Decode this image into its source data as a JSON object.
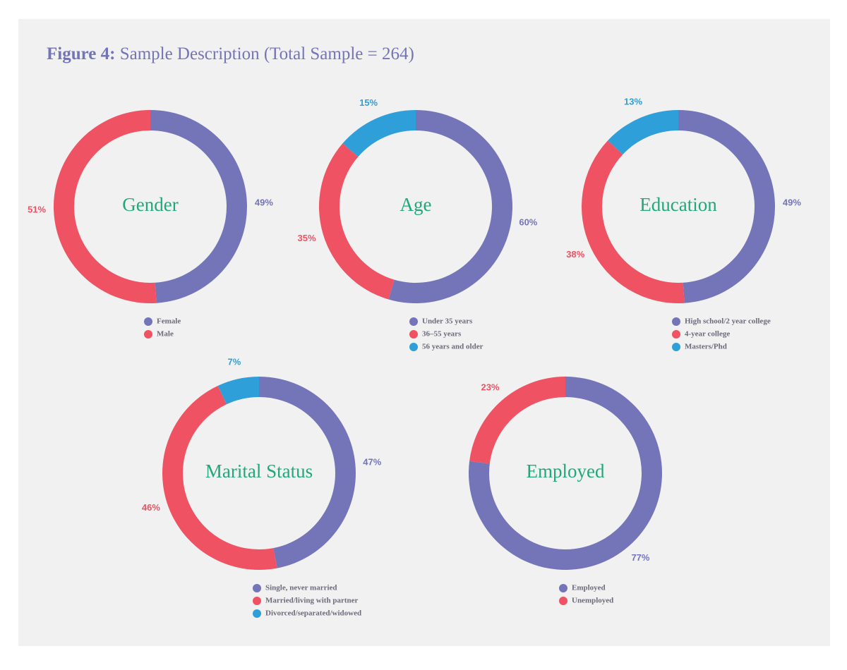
{
  "header": {
    "label": "Figure 4:",
    "title": "Sample Description (Total Sample = 264)"
  },
  "chart_data": [
    {
      "type": "donut",
      "title": "Gender",
      "categories": [
        "Female",
        "Male"
      ],
      "values": [
        49,
        51
      ],
      "value_labels": [
        "49%",
        "51%"
      ],
      "colors": [
        "#7474b8",
        "#ee5263"
      ]
    },
    {
      "type": "donut",
      "title": "Age",
      "categories": [
        "Under 35 years",
        "36–55 years",
        "56 years  and older"
      ],
      "values": [
        60,
        35,
        15
      ],
      "value_labels": [
        "60%",
        "35%",
        "15%"
      ],
      "colors": [
        "#7474b8",
        "#ee5263",
        "#2e9fd8"
      ]
    },
    {
      "type": "donut",
      "title": "Education",
      "categories": [
        "High school/2 year college",
        "4-year college",
        "Masters/Phd"
      ],
      "values": [
        49,
        38,
        13
      ],
      "value_labels": [
        "49%",
        "38%",
        "13%"
      ],
      "colors": [
        "#7474b8",
        "#ee5263",
        "#2e9fd8"
      ]
    },
    {
      "type": "donut",
      "title": "Marital Status",
      "categories": [
        "Single, never married",
        "Married/living with partner",
        "Divorced/separated/widowed"
      ],
      "values": [
        47,
        46,
        7
      ],
      "value_labels": [
        "47%",
        "46%",
        "7%"
      ],
      "colors": [
        "#7474b8",
        "#ee5263",
        "#2e9fd8"
      ]
    },
    {
      "type": "donut",
      "title": "Employed",
      "categories": [
        "Employed",
        "Unemployed"
      ],
      "values": [
        77,
        23
      ],
      "value_labels": [
        "77%",
        "23%"
      ],
      "colors": [
        "#7474b8",
        "#ee5263"
      ]
    }
  ]
}
